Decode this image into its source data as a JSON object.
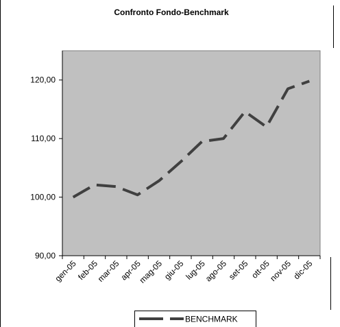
{
  "chart_data": {
    "type": "line",
    "title": "Confronto Fondo-Benchmark",
    "xlabel": "",
    "ylabel": "",
    "categories": [
      "gen-05",
      "feb-05",
      "mar-05",
      "apr-05",
      "mag-05",
      "giu-05",
      "lug-05",
      "ago-05",
      "set-05",
      "ott-05",
      "nov-05",
      "dic-05"
    ],
    "series": [
      {
        "name": "BENCHMARK",
        "values": [
          100.0,
          102.1,
          101.8,
          100.4,
          102.8,
          106.0,
          109.5,
          110.0,
          114.6,
          112.0,
          118.5,
          119.8
        ],
        "color": "#404040",
        "style": "dashed"
      }
    ],
    "yticks": [
      "90,00",
      "100,00",
      "110,00",
      "120,00"
    ],
    "ytick_values": [
      90,
      100,
      110,
      120
    ],
    "ylim": [
      90,
      125
    ],
    "grid": false,
    "legend": "bottom",
    "plot_background": "#c0c0c0"
  }
}
